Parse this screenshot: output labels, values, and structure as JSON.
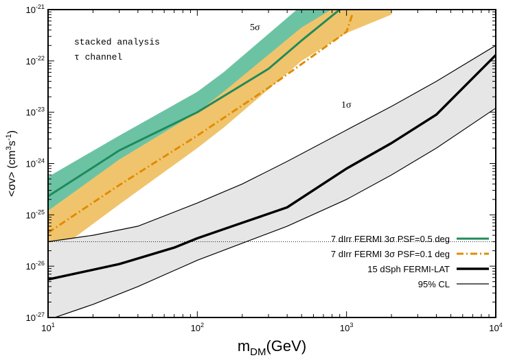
{
  "chart_data": {
    "type": "line",
    "xscale": "log",
    "yscale": "log",
    "xlim": [
      10,
      10000
    ],
    "ylim": [
      1e-27,
      1e-21
    ],
    "xlabel": {
      "main": "m",
      "sub": "DM",
      "rest": "(GeV)"
    },
    "ylabel": {
      "pre": "<σv> (cm",
      "sup1": "3",
      "mid": "s",
      "sup2": "-1",
      "post": ")"
    },
    "x_ticks": [
      {
        "value": 10,
        "base": "10",
        "exp": "1"
      },
      {
        "value": 100,
        "base": "10",
        "exp": "2"
      },
      {
        "value": 1000,
        "base": "10",
        "exp": "3"
      },
      {
        "value": 10000,
        "base": "10",
        "exp": "4"
      }
    ],
    "y_ticks": [
      {
        "value": 1e-21,
        "base": "10",
        "exp": "-21"
      },
      {
        "value": 1e-22,
        "base": "10",
        "exp": "-22"
      },
      {
        "value": 1e-23,
        "base": "10",
        "exp": "-23"
      },
      {
        "value": 1e-24,
        "base": "10",
        "exp": "-24"
      },
      {
        "value": 1e-25,
        "base": "10",
        "exp": "-25"
      },
      {
        "value": 1e-26,
        "base": "10",
        "exp": "-26"
      },
      {
        "value": 1e-27,
        "base": "10",
        "exp": "-27"
      }
    ],
    "annotations": {
      "line1": "stacked analysis",
      "line2": "τ channel",
      "five_sigma": "5σ",
      "one_sigma": "1σ"
    },
    "thermal_reference": 3e-26,
    "colors": {
      "green": "#1f8a5b",
      "green_band": "#6cc3a4",
      "orange": "#e08c00",
      "orange_band": "#f0c46c",
      "gray_band": "#e6e6e6",
      "black": "#000000"
    },
    "bands": [
      {
        "name": "7 dIrr PSF=0.5 deg band",
        "color": "green_band",
        "x": [
          10,
          30,
          100,
          150,
          500,
          1000,
          2000
        ],
        "upper": [
          5.5e-25,
          3.5e-24,
          2.5e-23,
          6e-23,
          1.2e-21,
          5e-21,
          1e-20
        ],
        "lower": [
          4e-26,
          4.5e-25,
          6e-24,
          1.5e-23,
          3e-22,
          1e-21,
          2e-21
        ]
      },
      {
        "name": "7 dIrr PSF=0.1 deg band",
        "color": "orange_band",
        "x": [
          10,
          30,
          100,
          150,
          500,
          1000,
          2000
        ],
        "upper": [
          1.2e-25,
          1.2e-24,
          1e-23,
          2.5e-23,
          4.5e-22,
          1.5e-21,
          3e-21
        ],
        "lower": [
          1.5e-26,
          1.6e-25,
          2e-24,
          5e-24,
          1e-22,
          3.5e-22,
          8e-22
        ]
      },
      {
        "name": "15 dSph 95% CL band",
        "color": "gray_band",
        "x": [
          10,
          20,
          40,
          100,
          200,
          400,
          1000,
          2000,
          4000,
          10000
        ],
        "upper": [
          3e-26,
          4e-26,
          6e-26,
          1.7e-25,
          4e-25,
          1.1e-24,
          4.5e-24,
          1.3e-23,
          4e-23,
          2e-22
        ],
        "lower": [
          9e-28,
          1.8e-27,
          4e-27,
          1.3e-26,
          2.8e-26,
          6e-26,
          2e-25,
          6e-25,
          2e-24,
          1.2e-23
        ]
      }
    ],
    "series": [
      {
        "name": "7 dIrr FERMI 3σ PSF=0.5 deg",
        "style": "solid",
        "color": "green",
        "x": [
          10,
          30,
          100,
          300,
          500,
          900
        ],
        "values": [
          2.3e-25,
          1.8e-24,
          1e-23,
          7e-23,
          2.5e-22,
          1e-21
        ]
      },
      {
        "name": "7 dIrr FERMI 3σ PSF=0.1 deg",
        "style": "dashdot",
        "color": "orange",
        "x": [
          10,
          30,
          100,
          300,
          1000,
          1100
        ],
        "values": [
          4.5e-26,
          3.8e-25,
          3.5e-24,
          3e-23,
          3.7e-22,
          8.5e-22
        ]
      },
      {
        "name": "15 dSph FERMI-LAT",
        "style": "thick",
        "color": "black",
        "x": [
          10,
          30,
          70,
          100,
          200,
          400,
          1000,
          2000,
          4000,
          10000
        ],
        "values": [
          5.5e-27,
          1.1e-26,
          2.3e-26,
          3.5e-26,
          7e-26,
          1.4e-25,
          8e-25,
          2.5e-24,
          9e-24,
          1.3e-22
        ]
      }
    ],
    "legend": {
      "position": "bottom-right",
      "entries": [
        {
          "label": "7 dIrr FERMI 3σ PSF=0.5 deg",
          "style": "solid",
          "color": "green"
        },
        {
          "label": "7 dIrr FERMI 3σ PSF=0.1 deg",
          "style": "dashdot",
          "color": "orange"
        },
        {
          "label": "15 dSph FERMI-LAT",
          "style": "thick",
          "color": "black"
        },
        {
          "label": "95% CL",
          "style": "thin",
          "color": "black"
        }
      ]
    }
  }
}
